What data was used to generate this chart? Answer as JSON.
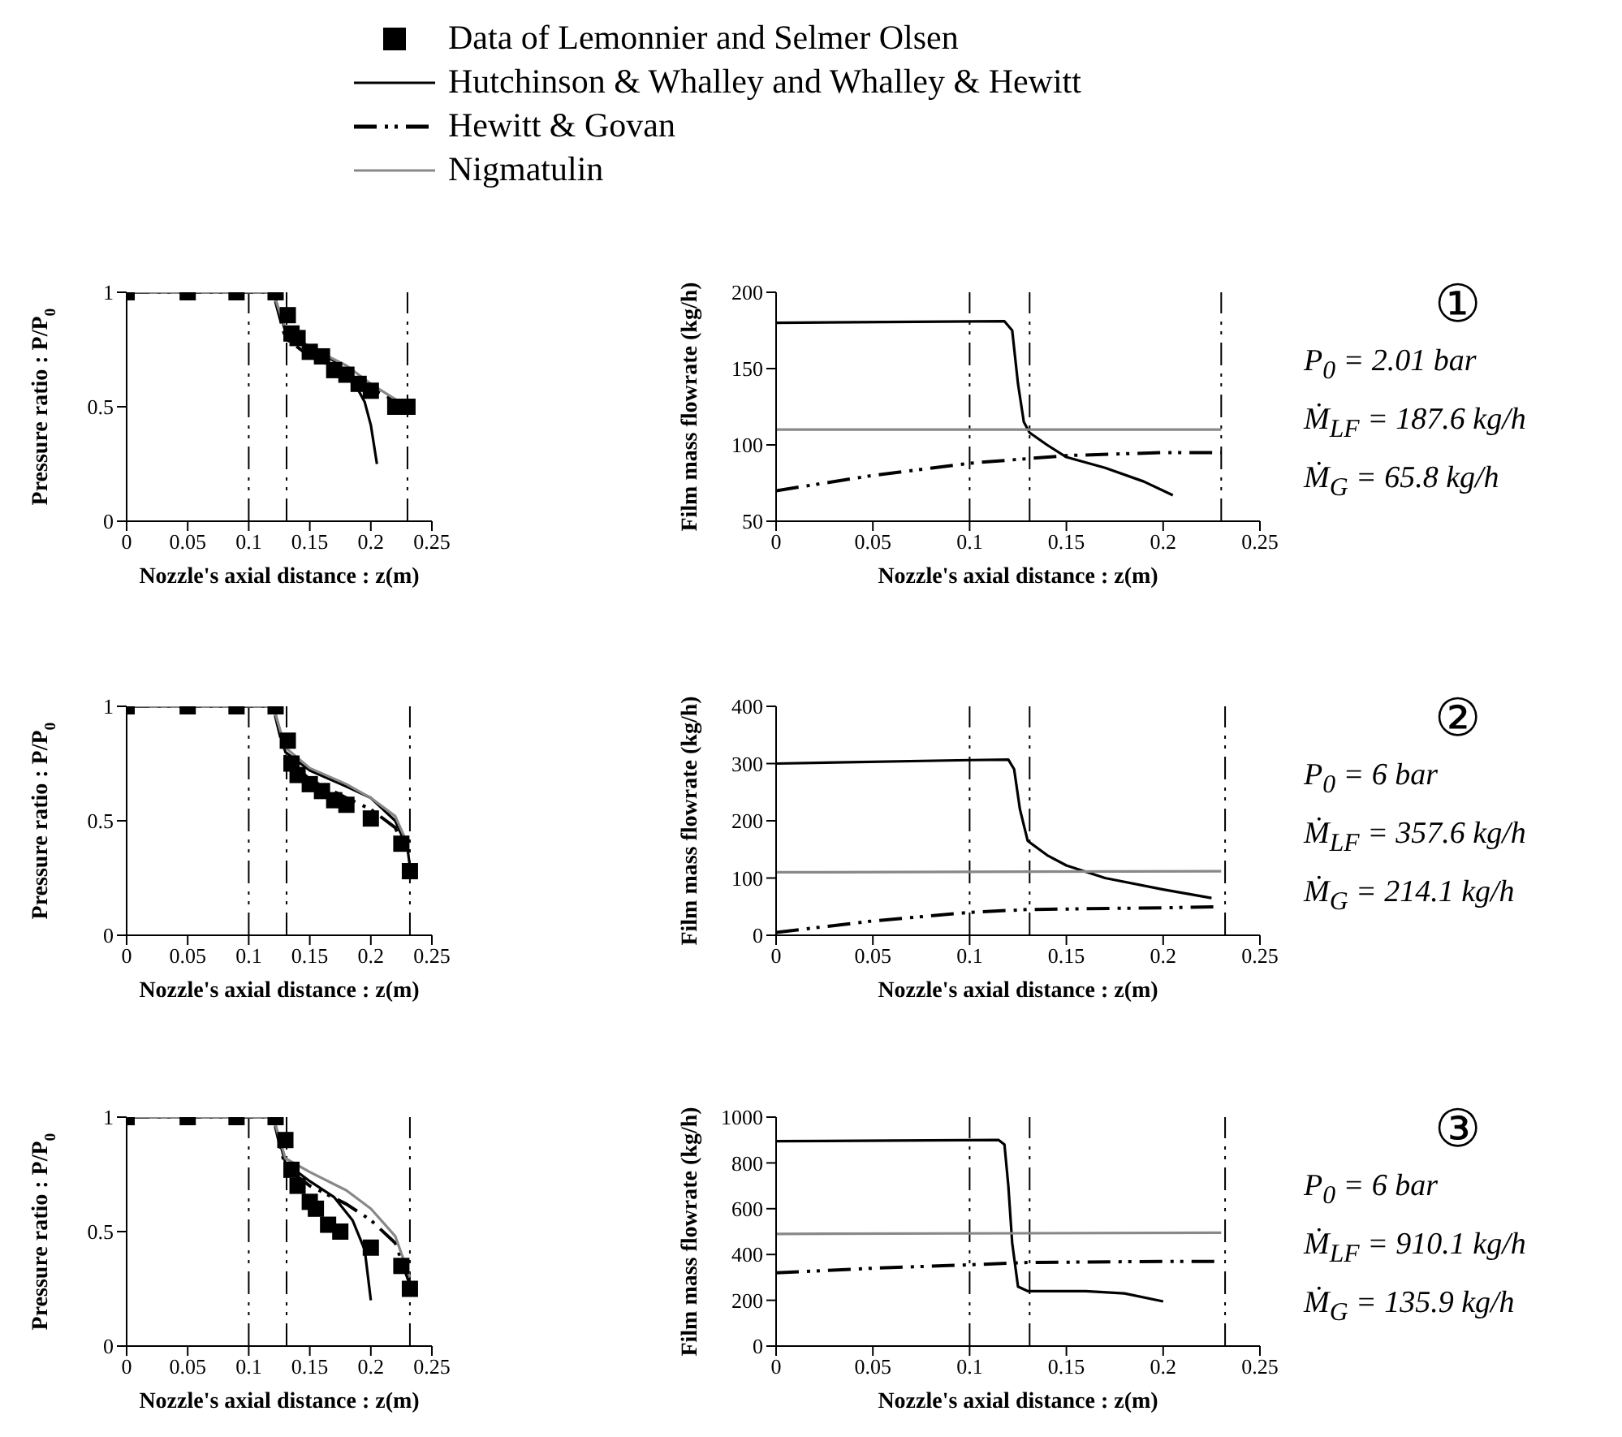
{
  "chart_data": [
    {
      "type": "line",
      "xlabel": "Nozzle's axial distance : z(m)",
      "ylabel": "Pressure ratio : P/P$_{0}$",
      "xlim": [
        0,
        0.25
      ],
      "xticks": [
        0,
        0.05,
        0.1,
        0.15,
        0.2,
        0.25
      ],
      "ylim": [
        0,
        1
      ],
      "yticks": [
        0,
        0.5,
        1
      ],
      "legend": "top",
      "ref_lines": [
        {
          "axis": "x",
          "value": 0.1,
          "color": "#000000",
          "line_style": "dashed"
        },
        {
          "axis": "x",
          "value": 0.131,
          "color": "#000000",
          "line_style": "dashed"
        },
        {
          "axis": "x",
          "value": 0.23,
          "color": "#000000",
          "line_style": "dashed"
        }
      ],
      "series": [
        {
          "name": "Data of Lemonnier and Selmer Olsen",
          "type": "scatter",
          "marker": "square",
          "color": "#000000",
          "x": [
            0,
            0.05,
            0.09,
            0.122,
            0.132,
            0.135,
            0.14,
            0.15,
            0.16,
            0.17,
            0.18,
            0.19,
            0.2,
            0.22,
            0.23
          ],
          "values": [
            1,
            1,
            1,
            1,
            0.9,
            0.82,
            0.8,
            0.74,
            0.72,
            0.66,
            0.64,
            0.6,
            0.57,
            0.5,
            0.5
          ]
        },
        {
          "name": "Hutchinson & Whalley and Whalley & Hewitt",
          "type": "line",
          "line_style": "solid",
          "color": "#000000",
          "x": [
            0,
            0.12,
            0.13,
            0.15,
            0.17,
            0.185,
            0.195,
            0.2,
            0.205
          ],
          "values": [
            1,
            1,
            0.83,
            0.76,
            0.7,
            0.62,
            0.52,
            0.42,
            0.25
          ]
        },
        {
          "name": "Hewitt & Govan",
          "type": "line",
          "line_style": "dashed",
          "color": "#000000",
          "x": [
            0,
            0.12,
            0.13,
            0.15,
            0.18,
            0.2,
            0.23
          ],
          "values": [
            1,
            1,
            0.8,
            0.72,
            0.65,
            0.58,
            0.5
          ]
        },
        {
          "name": "Nigmatulin",
          "type": "line",
          "line_style": "solid",
          "color": "#888888",
          "x": [
            0,
            0.12,
            0.13,
            0.15,
            0.18,
            0.2,
            0.23
          ],
          "values": [
            1,
            1,
            0.84,
            0.76,
            0.68,
            0.6,
            0.5
          ]
        }
      ]
    },
    {
      "type": "line",
      "xlabel": "Nozzle's axial distance : z(m)",
      "ylabel": "Film mass flowrate (kg/h)",
      "xlim": [
        0,
        0.25
      ],
      "xticks": [
        0,
        0.05,
        0.1,
        0.15,
        0.2,
        0.25
      ],
      "ylim": [
        50,
        200
      ],
      "yticks": [
        50,
        100,
        150,
        200
      ],
      "annotations": [
        "①",
        "P$_{0}$ = 2.01 bar",
        "Ṁ$_{LF}$ = 187.6 kg/h",
        "Ṁ$_{G}$ = 65.8 kg/h"
      ],
      "ref_lines": [
        {
          "axis": "x",
          "value": 0.1,
          "color": "#000000",
          "line_style": "dashed"
        },
        {
          "axis": "x",
          "value": 0.131,
          "color": "#000000",
          "line_style": "dashed"
        },
        {
          "axis": "x",
          "value": 0.23,
          "color": "#000000",
          "line_style": "dashed"
        }
      ],
      "series": [
        {
          "type": "line",
          "line_style": "solid",
          "color": "#000000",
          "x": [
            0,
            0.118,
            0.122,
            0.125,
            0.128,
            0.131,
            0.14,
            0.15,
            0.17,
            0.19,
            0.205
          ],
          "values": [
            180,
            181,
            175,
            140,
            115,
            108,
            100,
            92,
            85,
            76,
            67
          ]
        },
        {
          "type": "line",
          "line_style": "dashed",
          "color": "#000000",
          "x": [
            0,
            0.05,
            0.1,
            0.13,
            0.15,
            0.2,
            0.23
          ],
          "values": [
            70,
            80,
            88,
            91,
            93,
            95,
            95
          ]
        },
        {
          "type": "line",
          "line_style": "solid",
          "color": "#888888",
          "x": [
            0,
            0.23
          ],
          "values": [
            110,
            110
          ]
        }
      ]
    },
    {
      "type": "line",
      "xlabel": "Nozzle's axial distance : z(m)",
      "ylabel": "Pressure ratio : P/P$_{0}$",
      "xlim": [
        0,
        0.25
      ],
      "xticks": [
        0,
        0.05,
        0.1,
        0.15,
        0.2,
        0.25
      ],
      "ylim": [
        0,
        1
      ],
      "yticks": [
        0,
        0.5,
        1
      ],
      "ref_lines": [
        {
          "axis": "x",
          "value": 0.1,
          "color": "#000000",
          "line_style": "dashed"
        },
        {
          "axis": "x",
          "value": 0.131,
          "color": "#000000",
          "line_style": "dashed"
        },
        {
          "axis": "x",
          "value": 0.232,
          "color": "#000000",
          "line_style": "dashed"
        }
      ],
      "series": [
        {
          "type": "scatter",
          "marker": "square",
          "color": "#000000",
          "x": [
            0,
            0.05,
            0.09,
            0.122,
            0.132,
            0.135,
            0.14,
            0.15,
            0.16,
            0.17,
            0.18,
            0.2,
            0.225,
            0.232
          ],
          "values": [
            1,
            1,
            1,
            1,
            0.85,
            0.75,
            0.7,
            0.66,
            0.63,
            0.59,
            0.57,
            0.51,
            0.4,
            0.28
          ]
        },
        {
          "type": "line",
          "line_style": "solid",
          "color": "#000000",
          "x": [
            0,
            0.12,
            0.13,
            0.15,
            0.18,
            0.2,
            0.22,
            0.23,
            0.232
          ],
          "values": [
            1,
            1,
            0.8,
            0.72,
            0.65,
            0.6,
            0.5,
            0.38,
            0.3
          ]
        },
        {
          "type": "line",
          "line_style": "dashed",
          "color": "#000000",
          "x": [
            0,
            0.12,
            0.13,
            0.15,
            0.18,
            0.2,
            0.22,
            0.23
          ],
          "values": [
            1,
            1,
            0.78,
            0.68,
            0.6,
            0.55,
            0.47,
            0.35
          ]
        },
        {
          "type": "line",
          "line_style": "solid",
          "color": "#888888",
          "x": [
            0,
            0.12,
            0.13,
            0.15,
            0.18,
            0.2,
            0.22,
            0.23
          ],
          "values": [
            1,
            1,
            0.82,
            0.73,
            0.66,
            0.6,
            0.52,
            0.4
          ]
        }
      ]
    },
    {
      "type": "line",
      "xlabel": "Nozzle's axial distance : z(m)",
      "ylabel": "Film mass flowrate (kg/h)",
      "xlim": [
        0,
        0.25
      ],
      "xticks": [
        0,
        0.05,
        0.1,
        0.15,
        0.2,
        0.25
      ],
      "ylim": [
        0,
        400
      ],
      "yticks": [
        0,
        100,
        200,
        300,
        400
      ],
      "annotations": [
        "②",
        "P$_{0}$ = 6 bar",
        "Ṁ$_{LF}$ = 357.6 kg/h",
        "Ṁ$_{G}$ = 214.1 kg/h"
      ],
      "ref_lines": [
        {
          "axis": "x",
          "value": 0.1,
          "color": "#000000",
          "line_style": "dashed"
        },
        {
          "axis": "x",
          "value": 0.131,
          "color": "#000000",
          "line_style": "dashed"
        },
        {
          "axis": "x",
          "value": 0.232,
          "color": "#000000",
          "line_style": "dashed"
        }
      ],
      "series": [
        {
          "type": "line",
          "line_style": "solid",
          "color": "#000000",
          "x": [
            0,
            0.1,
            0.12,
            0.123,
            0.126,
            0.13,
            0.14,
            0.15,
            0.17,
            0.2,
            0.225
          ],
          "values": [
            300,
            306,
            307,
            290,
            220,
            165,
            140,
            122,
            100,
            80,
            65
          ]
        },
        {
          "type": "line",
          "line_style": "dashed",
          "color": "#000000",
          "x": [
            0,
            0.05,
            0.1,
            0.13,
            0.2,
            0.23
          ],
          "values": [
            5,
            25,
            40,
            45,
            48,
            50
          ]
        },
        {
          "type": "line",
          "line_style": "solid",
          "color": "#888888",
          "x": [
            0,
            0.23
          ],
          "values": [
            110,
            112
          ]
        }
      ]
    },
    {
      "type": "line",
      "xlabel": "Nozzle's axial distance : z(m)",
      "ylabel": "Pressure ratio : P/P$_{0}$",
      "xlim": [
        0,
        0.25
      ],
      "xticks": [
        0,
        0.05,
        0.1,
        0.15,
        0.2,
        0.25
      ],
      "ylim": [
        0,
        1
      ],
      "yticks": [
        0,
        0.5,
        1
      ],
      "ref_lines": [
        {
          "axis": "x",
          "value": 0.1,
          "color": "#000000",
          "line_style": "dashed"
        },
        {
          "axis": "x",
          "value": 0.131,
          "color": "#000000",
          "line_style": "dashed"
        },
        {
          "axis": "x",
          "value": 0.232,
          "color": "#000000",
          "line_style": "dashed"
        }
      ],
      "series": [
        {
          "type": "scatter",
          "marker": "square",
          "color": "#000000",
          "x": [
            0,
            0.05,
            0.09,
            0.122,
            0.13,
            0.135,
            0.14,
            0.15,
            0.155,
            0.165,
            0.175,
            0.2,
            0.225,
            0.232
          ],
          "values": [
            1,
            1,
            1,
            1,
            0.9,
            0.77,
            0.7,
            0.63,
            0.6,
            0.53,
            0.5,
            0.43,
            0.35,
            0.25
          ]
        },
        {
          "type": "line",
          "line_style": "solid",
          "color": "#000000",
          "x": [
            0,
            0.12,
            0.13,
            0.15,
            0.17,
            0.185,
            0.195,
            0.2
          ],
          "values": [
            1,
            1,
            0.8,
            0.72,
            0.65,
            0.55,
            0.42,
            0.2
          ]
        },
        {
          "type": "line",
          "line_style": "dashed",
          "color": "#000000",
          "x": [
            0,
            0.12,
            0.13,
            0.15,
            0.18,
            0.2,
            0.22,
            0.232
          ],
          "values": [
            1,
            1,
            0.78,
            0.7,
            0.62,
            0.55,
            0.45,
            0.27
          ]
        },
        {
          "type": "line",
          "line_style": "solid",
          "color": "#888888",
          "x": [
            0,
            0.12,
            0.13,
            0.15,
            0.18,
            0.2,
            0.22,
            0.232
          ],
          "values": [
            1,
            1,
            0.82,
            0.76,
            0.68,
            0.6,
            0.48,
            0.3
          ]
        }
      ]
    },
    {
      "type": "line",
      "xlabel": "Nozzle's axial distance : z(m)",
      "ylabel": "Film mass flowrate (kg/h)",
      "xlim": [
        0,
        0.25
      ],
      "xticks": [
        0,
        0.05,
        0.1,
        0.15,
        0.2,
        0.25
      ],
      "ylim": [
        0,
        1000
      ],
      "yticks": [
        0,
        200,
        400,
        600,
        800,
        1000
      ],
      "annotations": [
        "③",
        "P$_{0}$ = 6 bar",
        "Ṁ$_{LF}$ = 910.1 kg/h",
        "Ṁ$_{G}$ = 135.9 kg/h"
      ],
      "ref_lines": [
        {
          "axis": "x",
          "value": 0.1,
          "color": "#000000",
          "line_style": "dashed"
        },
        {
          "axis": "x",
          "value": 0.131,
          "color": "#000000",
          "line_style": "dashed"
        },
        {
          "axis": "x",
          "value": 0.232,
          "color": "#000000",
          "line_style": "dashed"
        }
      ],
      "series": [
        {
          "type": "line",
          "line_style": "solid",
          "color": "#000000",
          "x": [
            0,
            0.115,
            0.118,
            0.12,
            0.122,
            0.125,
            0.13,
            0.16,
            0.18,
            0.2
          ],
          "values": [
            895,
            900,
            880,
            700,
            450,
            260,
            240,
            240,
            230,
            195
          ]
        },
        {
          "type": "line",
          "line_style": "dashed",
          "color": "#000000",
          "x": [
            0,
            0.05,
            0.1,
            0.13,
            0.2,
            0.23
          ],
          "values": [
            320,
            340,
            355,
            365,
            370,
            370
          ]
        },
        {
          "type": "line",
          "line_style": "solid",
          "color": "#888888",
          "x": [
            0,
            0.23
          ],
          "values": [
            490,
            495
          ]
        }
      ]
    }
  ]
}
